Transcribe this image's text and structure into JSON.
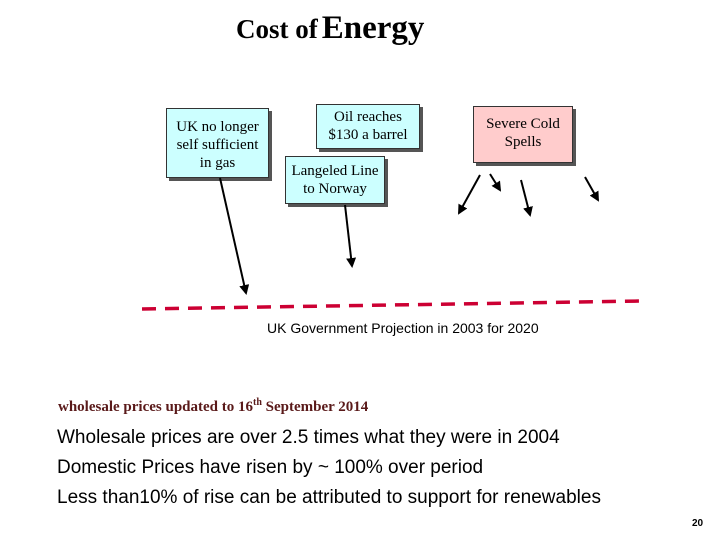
{
  "title": {
    "part1": "Cost of",
    "part2": "Energy"
  },
  "boxes": {
    "uk_gas": "UK no longer\nself sufficient\nin gas",
    "oil": "Oil reaches\n$130 a barrel",
    "cold": "Severe Cold\nSpells",
    "langeled": "Langeled Line\nto Norway"
  },
  "projection_label": "UK Government Projection  in 2003 for 2020",
  "update_note": {
    "prefix": "wholesale prices updated to 16",
    "sup": "th",
    "suffix": " September 2014"
  },
  "bullets": [
    "Wholesale prices are over 2.5 times what they were in 2004",
    "Domestic Prices have risen by ~ 100% over period",
    "Less than10% of rise can be attributed to support for renewables"
  ],
  "page_number": "20",
  "colors": {
    "cyan_box": "#ccffff",
    "pink_box": "#ffcccc",
    "dash_line": "#cc0033",
    "update_text": "#5a1a1a"
  }
}
